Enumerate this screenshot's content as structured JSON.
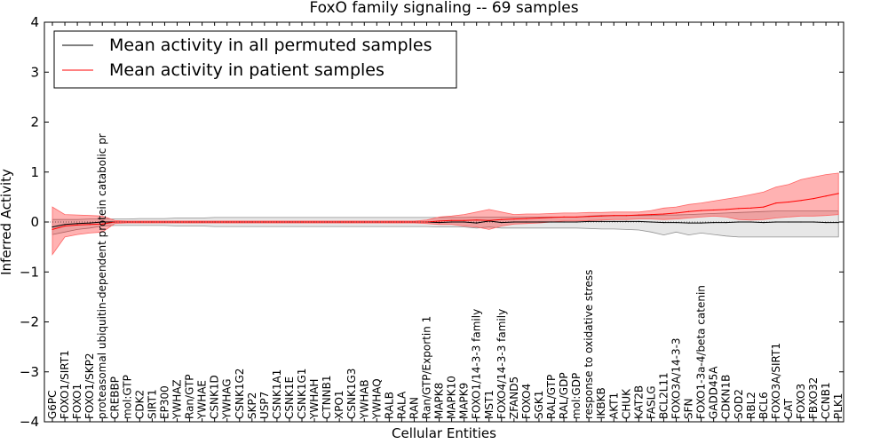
{
  "chart_data": {
    "type": "line",
    "title": "FoxO family signaling -- 69 samples",
    "xlabel": "Cellular Entities",
    "ylabel": "Inferred Activity",
    "ylim": [
      -4,
      4
    ],
    "yticks": [
      -4,
      -3,
      -2,
      -1,
      0,
      1,
      2,
      3,
      4
    ],
    "ytick_labels": [
      "−4",
      "−3",
      "−2",
      "−1",
      "0",
      "1",
      "2",
      "3",
      "4"
    ],
    "legend_position": "top-left",
    "categories": [
      "G6PC",
      "FOXO1/SIRT1",
      "FOXO1",
      "FOXO1/SKP2",
      "proteasomal ubiquitin-dependent protein catabolic pr",
      "CREBBP",
      "mol:GTP",
      "CDK2",
      "SIRT1",
      "EP300",
      "YWHAZ",
      "Ran/GTP",
      "YWHAE",
      "CSNK1D",
      "YWHAG",
      "CSNK1G2",
      "SKP2",
      "USP7",
      "CSNK1A1",
      "CSNK1E",
      "CSNK1G1",
      "YWHAH",
      "CTNNB1",
      "XPO1",
      "CSNK1G3",
      "YWHAB",
      "YWHAQ",
      "RALB",
      "RALA",
      "RAN",
      "Ran/GTP/Exportin 1",
      "MAPK8",
      "MAPK10",
      "MAPK9",
      "FOXO1/14-3-3 family",
      "MST1",
      "FOXO4/14-3-3 family",
      "ZFAND5",
      "FOXO4",
      "SGK1",
      "RAL/GTP",
      "RAL/GDP",
      "mol:GDP",
      "response to oxidative stress",
      "IKBKB",
      "AKT1",
      "CHUK",
      "KAT2B",
      "FASLG",
      "BCL2L11",
      "FOXO3A/14-3-3",
      "SFN",
      "FOXO1-3a-4/beta catenin",
      "GADD45A",
      "CDKN1B",
      "SOD2",
      "RBL2",
      "BCL6",
      "FOXO3A/SIRT1",
      "CAT",
      "FOXO3",
      "FBXO32",
      "CCNB1",
      "PLK1"
    ],
    "series": [
      {
        "name": "Mean activity in all permuted samples",
        "color": "#000000",
        "values": [
          -0.1,
          -0.05,
          -0.03,
          -0.02,
          0.0,
          0.0,
          0.0,
          0.0,
          0.0,
          0.0,
          0.0,
          0.0,
          0.0,
          0.0,
          0.0,
          0.0,
          0.0,
          0.0,
          0.0,
          0.0,
          0.0,
          0.0,
          0.0,
          0.0,
          0.0,
          0.0,
          0.0,
          0.0,
          0.0,
          0.0,
          0.0,
          -0.01,
          0.0,
          0.0,
          -0.02,
          0.02,
          -0.01,
          0.0,
          0.0,
          0.0,
          0.0,
          0.0,
          0.0,
          0.01,
          0.01,
          0.01,
          0.01,
          0.01,
          0.0,
          -0.01,
          -0.01,
          -0.02,
          -0.02,
          -0.01,
          -0.01,
          0.0,
          0.0,
          -0.01,
          0.0,
          0.0,
          0.0,
          0.0,
          -0.01,
          -0.01
        ],
        "band_upper": [
          0.05,
          0.05,
          0.05,
          0.06,
          0.06,
          0.06,
          0.06,
          0.07,
          0.07,
          0.07,
          0.08,
          0.08,
          0.08,
          0.09,
          0.09,
          0.09,
          0.09,
          0.09,
          0.09,
          0.09,
          0.09,
          0.09,
          0.09,
          0.09,
          0.09,
          0.09,
          0.09,
          0.09,
          0.09,
          0.09,
          0.09,
          0.09,
          0.09,
          0.09,
          0.1,
          0.1,
          0.1,
          0.1,
          0.1,
          0.1,
          0.1,
          0.1,
          0.1,
          0.12,
          0.13,
          0.13,
          0.13,
          0.13,
          0.13,
          0.14,
          0.14,
          0.15,
          0.16,
          0.17,
          0.18,
          0.19,
          0.2,
          0.21,
          0.22,
          0.22,
          0.22,
          0.22,
          0.22,
          0.22
        ],
        "band_lower": [
          -0.25,
          -0.2,
          -0.15,
          -0.12,
          -0.08,
          -0.07,
          -0.07,
          -0.07,
          -0.07,
          -0.07,
          -0.08,
          -0.08,
          -0.08,
          -0.09,
          -0.09,
          -0.09,
          -0.09,
          -0.09,
          -0.09,
          -0.09,
          -0.09,
          -0.09,
          -0.09,
          -0.09,
          -0.09,
          -0.09,
          -0.09,
          -0.09,
          -0.09,
          -0.09,
          -0.09,
          -0.1,
          -0.1,
          -0.1,
          -0.12,
          -0.1,
          -0.12,
          -0.12,
          -0.12,
          -0.12,
          -0.12,
          -0.12,
          -0.12,
          -0.13,
          -0.14,
          -0.14,
          -0.15,
          -0.16,
          -0.2,
          -0.26,
          -0.2,
          -0.26,
          -0.22,
          -0.25,
          -0.28,
          -0.3,
          -0.3,
          -0.3,
          -0.3,
          -0.3,
          -0.3,
          -0.3,
          -0.3,
          -0.3
        ]
      },
      {
        "name": "Mean activity in patient samples",
        "color": "#ff0000",
        "values": [
          -0.15,
          -0.08,
          -0.06,
          -0.05,
          -0.04,
          0.0,
          0.0,
          0.0,
          0.0,
          0.0,
          0.0,
          0.0,
          0.0,
          0.0,
          0.0,
          0.0,
          0.0,
          0.0,
          0.0,
          0.0,
          0.0,
          0.0,
          0.0,
          0.0,
          0.0,
          0.0,
          0.0,
          0.0,
          0.0,
          0.0,
          0.0,
          0.02,
          0.03,
          0.03,
          0.04,
          0.03,
          0.05,
          0.06,
          0.07,
          0.08,
          0.09,
          0.1,
          0.1,
          0.11,
          0.12,
          0.13,
          0.13,
          0.14,
          0.15,
          0.16,
          0.18,
          0.21,
          0.23,
          0.24,
          0.25,
          0.27,
          0.28,
          0.3,
          0.38,
          0.4,
          0.43,
          0.47,
          0.52,
          0.57
        ],
        "band_upper": [
          0.3,
          0.15,
          0.14,
          0.13,
          0.12,
          0.03,
          0.02,
          0.02,
          0.02,
          0.02,
          0.02,
          0.02,
          0.02,
          0.02,
          0.02,
          0.02,
          0.02,
          0.02,
          0.02,
          0.02,
          0.02,
          0.02,
          0.02,
          0.02,
          0.02,
          0.02,
          0.02,
          0.02,
          0.02,
          0.02,
          0.04,
          0.1,
          0.12,
          0.15,
          0.2,
          0.25,
          0.2,
          0.15,
          0.16,
          0.16,
          0.17,
          0.18,
          0.18,
          0.19,
          0.19,
          0.2,
          0.2,
          0.2,
          0.23,
          0.28,
          0.3,
          0.35,
          0.38,
          0.42,
          0.46,
          0.5,
          0.55,
          0.6,
          0.7,
          0.75,
          0.85,
          0.9,
          0.95,
          0.98
        ],
        "band_lower": [
          -0.65,
          -0.3,
          -0.25,
          -0.22,
          -0.2,
          -0.03,
          -0.02,
          -0.02,
          -0.02,
          -0.02,
          -0.02,
          -0.02,
          -0.02,
          -0.02,
          -0.02,
          -0.02,
          -0.02,
          -0.02,
          -0.02,
          -0.02,
          -0.02,
          -0.02,
          -0.02,
          -0.02,
          -0.02,
          -0.02,
          -0.02,
          -0.02,
          -0.02,
          -0.02,
          -0.03,
          -0.05,
          -0.05,
          -0.08,
          -0.1,
          -0.15,
          -0.08,
          -0.04,
          -0.03,
          -0.02,
          0.0,
          0.02,
          0.02,
          0.03,
          0.04,
          0.05,
          0.05,
          0.06,
          0.06,
          0.05,
          0.06,
          0.08,
          0.1,
          0.12,
          0.1,
          0.05,
          0.04,
          0.05,
          0.08,
          0.1,
          0.12,
          0.12,
          0.13,
          0.15
        ]
      }
    ]
  }
}
